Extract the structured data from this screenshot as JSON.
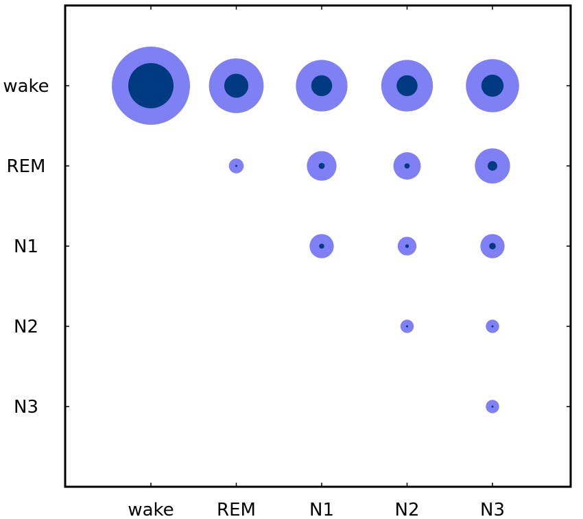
{
  "chart_data": {
    "type": "bubble-matrix",
    "title": "",
    "xlabel": "",
    "ylabel": "",
    "grid": false,
    "legend": "none",
    "x_categories": [
      "wake",
      "REM",
      "N1",
      "N2",
      "N3"
    ],
    "y_categories": [
      "wake",
      "REM",
      "N1",
      "N2",
      "N3"
    ],
    "series": [
      {
        "values": [
          [
            1.0,
            0.7,
            0.66,
            0.66,
            0.68
          ],
          [
            null,
            0.19,
            0.38,
            0.35,
            0.45
          ],
          [
            null,
            null,
            0.31,
            0.24,
            0.31
          ],
          [
            null,
            null,
            null,
            0.17,
            0.17
          ],
          [
            null,
            null,
            null,
            null,
            0.17
          ]
        ]
      },
      {
        "values": [
          [
            1.0,
            0.76,
            0.7,
            0.7,
            0.72
          ],
          [
            null,
            0.24,
            0.35,
            0.33,
            0.47
          ],
          [
            null,
            null,
            0.36,
            0.33,
            0.47
          ],
          [
            null,
            null,
            null,
            0.27,
            0.27
          ],
          [
            null,
            null,
            null,
            null,
            0.27
          ]
        ]
      }
    ],
    "colors": {
      "outer": "#8080f5",
      "inner": "#003a80",
      "frame": "#000000"
    }
  }
}
